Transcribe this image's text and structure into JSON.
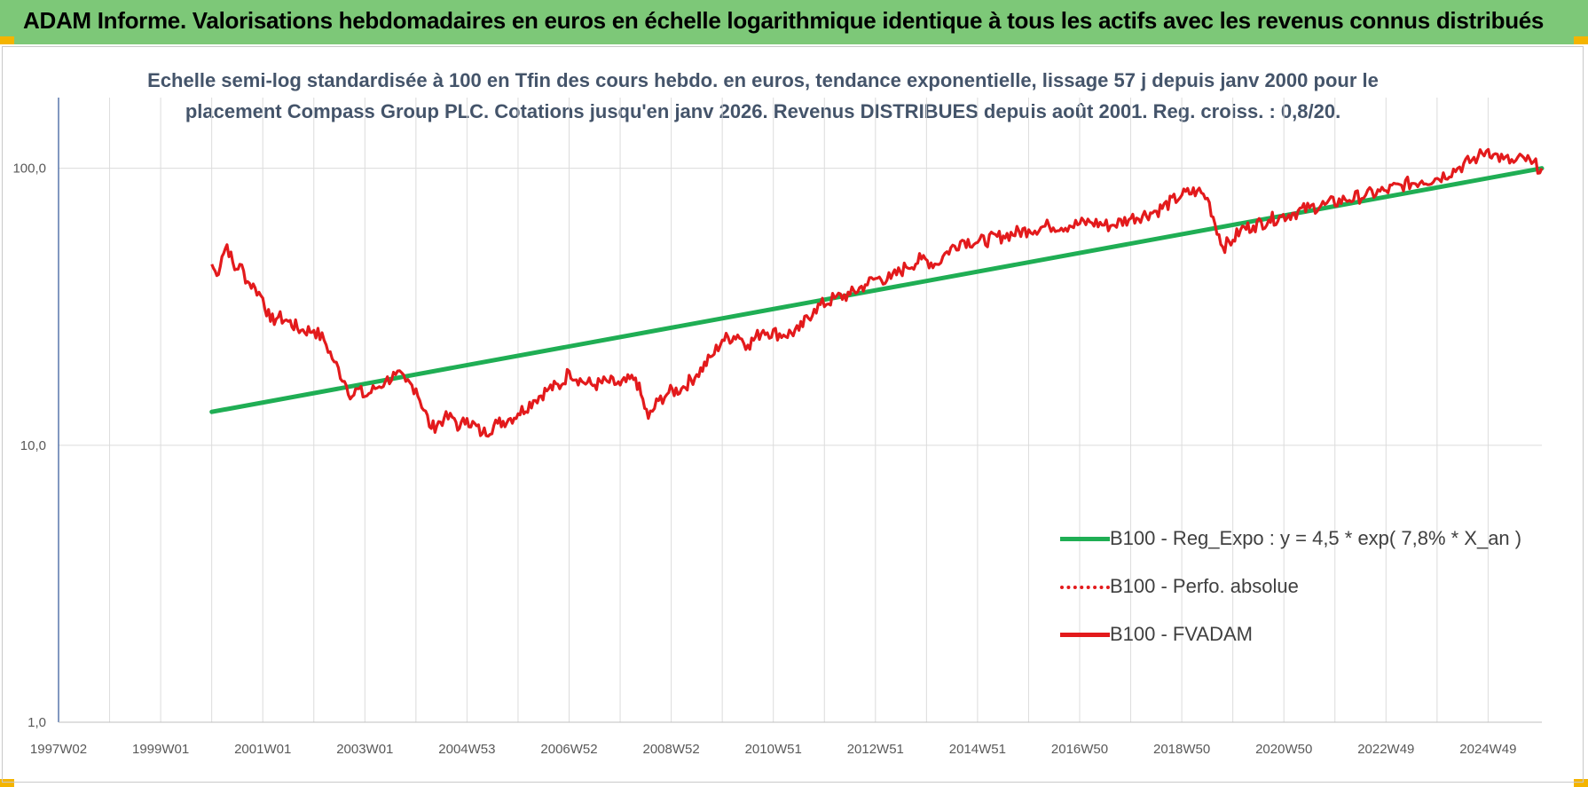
{
  "banner": {
    "title": "ADAM Informe. Valorisations hebdomadaires en euros en échelle logarithmique identique à tous les actifs avec les revenus connus distribués",
    "color": "#7dc878"
  },
  "chart_data": {
    "type": "line",
    "title": [
      "Echelle semi-log standardisée à 100 en Tfin des cours hebdo. en euros, tendance exponentielle, lissage 57 j depuis janv 2000 pour le",
      "placement Compass Group PLC. Cotations jusqu'en janv 2026. Revenus DISTRIBUES depuis août 2001. Reg. croiss. : 0,8/20."
    ],
    "xlabel": "",
    "ylabel": "",
    "y_scale": "log",
    "ylim": [
      1,
      180
    ],
    "grid": true,
    "legend_position": "right-middle",
    "x_tick_labels": [
      "1997W02",
      "1999W01",
      "2001W01",
      "2003W01",
      "2004W53",
      "2006W52",
      "2008W52",
      "2010W51",
      "2012W51",
      "2014W51",
      "2016W50",
      "2018W50",
      "2020W50",
      "2022W49",
      "2024W49"
    ],
    "y_tick_labels": [
      "1,0",
      "10,0",
      "100,0"
    ],
    "y_tick_values": [
      1,
      10,
      100
    ],
    "x_range_year": [
      1997.0,
      2026.05
    ],
    "series": [
      {
        "name": "B100 - Reg_Expo : y = 4,5 * exp( 7,8% *  X_an )",
        "color": "#1fae54",
        "style": "solid",
        "x": [
          2000.0,
          2026.05
        ],
        "y": [
          13.2,
          100
        ]
      },
      {
        "name": "B100 - Perfo. absolue",
        "color": "#e31a1c",
        "style": "dotted",
        "x": [],
        "y": []
      },
      {
        "name": "B100 - FVADAM",
        "color": "#e31a1c",
        "style": "solid",
        "x": [
          2000.0,
          2000.1,
          2000.2,
          2000.3,
          2000.45,
          2000.55,
          2000.7,
          2000.85,
          2001.0,
          2001.15,
          2001.3,
          2001.5,
          2001.75,
          2002.0,
          2002.2,
          2002.4,
          2002.6,
          2002.75,
          2002.85,
          2003.0,
          2003.2,
          2003.4,
          2003.6,
          2003.8,
          2004.0,
          2004.3,
          2004.55,
          2004.75,
          2004.85,
          2005.0,
          2005.3,
          2005.6,
          2005.85,
          2006.0,
          2006.3,
          2006.6,
          2006.85,
          2007.0,
          2007.25,
          2007.5,
          2007.75,
          2008.0,
          2008.3,
          2008.55,
          2008.75,
          2008.95,
          2009.2,
          2009.5,
          2009.8,
          2010.0,
          2010.3,
          2010.5,
          2010.8,
          2011.2,
          2011.5,
          2011.8,
          2012.2,
          2012.5,
          2012.8,
          2013.0,
          2013.3,
          2013.6,
          2013.9,
          2014.2,
          2014.4,
          2014.7,
          2015.0,
          2015.5,
          2016.0,
          2016.4,
          2016.8,
          2017.2,
          2017.6,
          2018.0,
          2018.5,
          2019.0,
          2019.3,
          2019.5,
          2019.8,
          2020.0,
          2020.15,
          2020.4,
          2020.7,
          2020.95,
          2021.2,
          2021.5,
          2021.8,
          2022.2,
          2022.6,
          2023.0,
          2023.3,
          2023.7,
          2024.0,
          2024.4,
          2024.8,
          2025.0,
          2025.1,
          2025.3,
          2025.5,
          2025.7,
          2025.85,
          2026.05
        ],
        "y": [
          45,
          41,
          48,
          53,
          43,
          45,
          39,
          37,
          34,
          28,
          29,
          28,
          26,
          26,
          24,
          20,
          17,
          15,
          16,
          15,
          16,
          17,
          18,
          17,
          16,
          11.5,
          12.5,
          12.5,
          11.5,
          12.5,
          11,
          12,
          12.5,
          13,
          14.5,
          16,
          16.5,
          18.5,
          17,
          16.5,
          17,
          16.5,
          17.5,
          12.5,
          14.5,
          15.5,
          16,
          18,
          21,
          24,
          25,
          23,
          26,
          25,
          26,
          31,
          34,
          35,
          38,
          40,
          40,
          44,
          47,
          45,
          50,
          55,
          54,
          57,
          60,
          62,
          62,
          64,
          62,
          66,
          70,
          80,
          83,
          78,
          52,
          55,
          60,
          62,
          65,
          67,
          69,
          72,
          74,
          77,
          80,
          83,
          87,
          90,
          92,
          100,
          110,
          117,
          112,
          108,
          105,
          109,
          104,
          100
        ]
      }
    ]
  }
}
